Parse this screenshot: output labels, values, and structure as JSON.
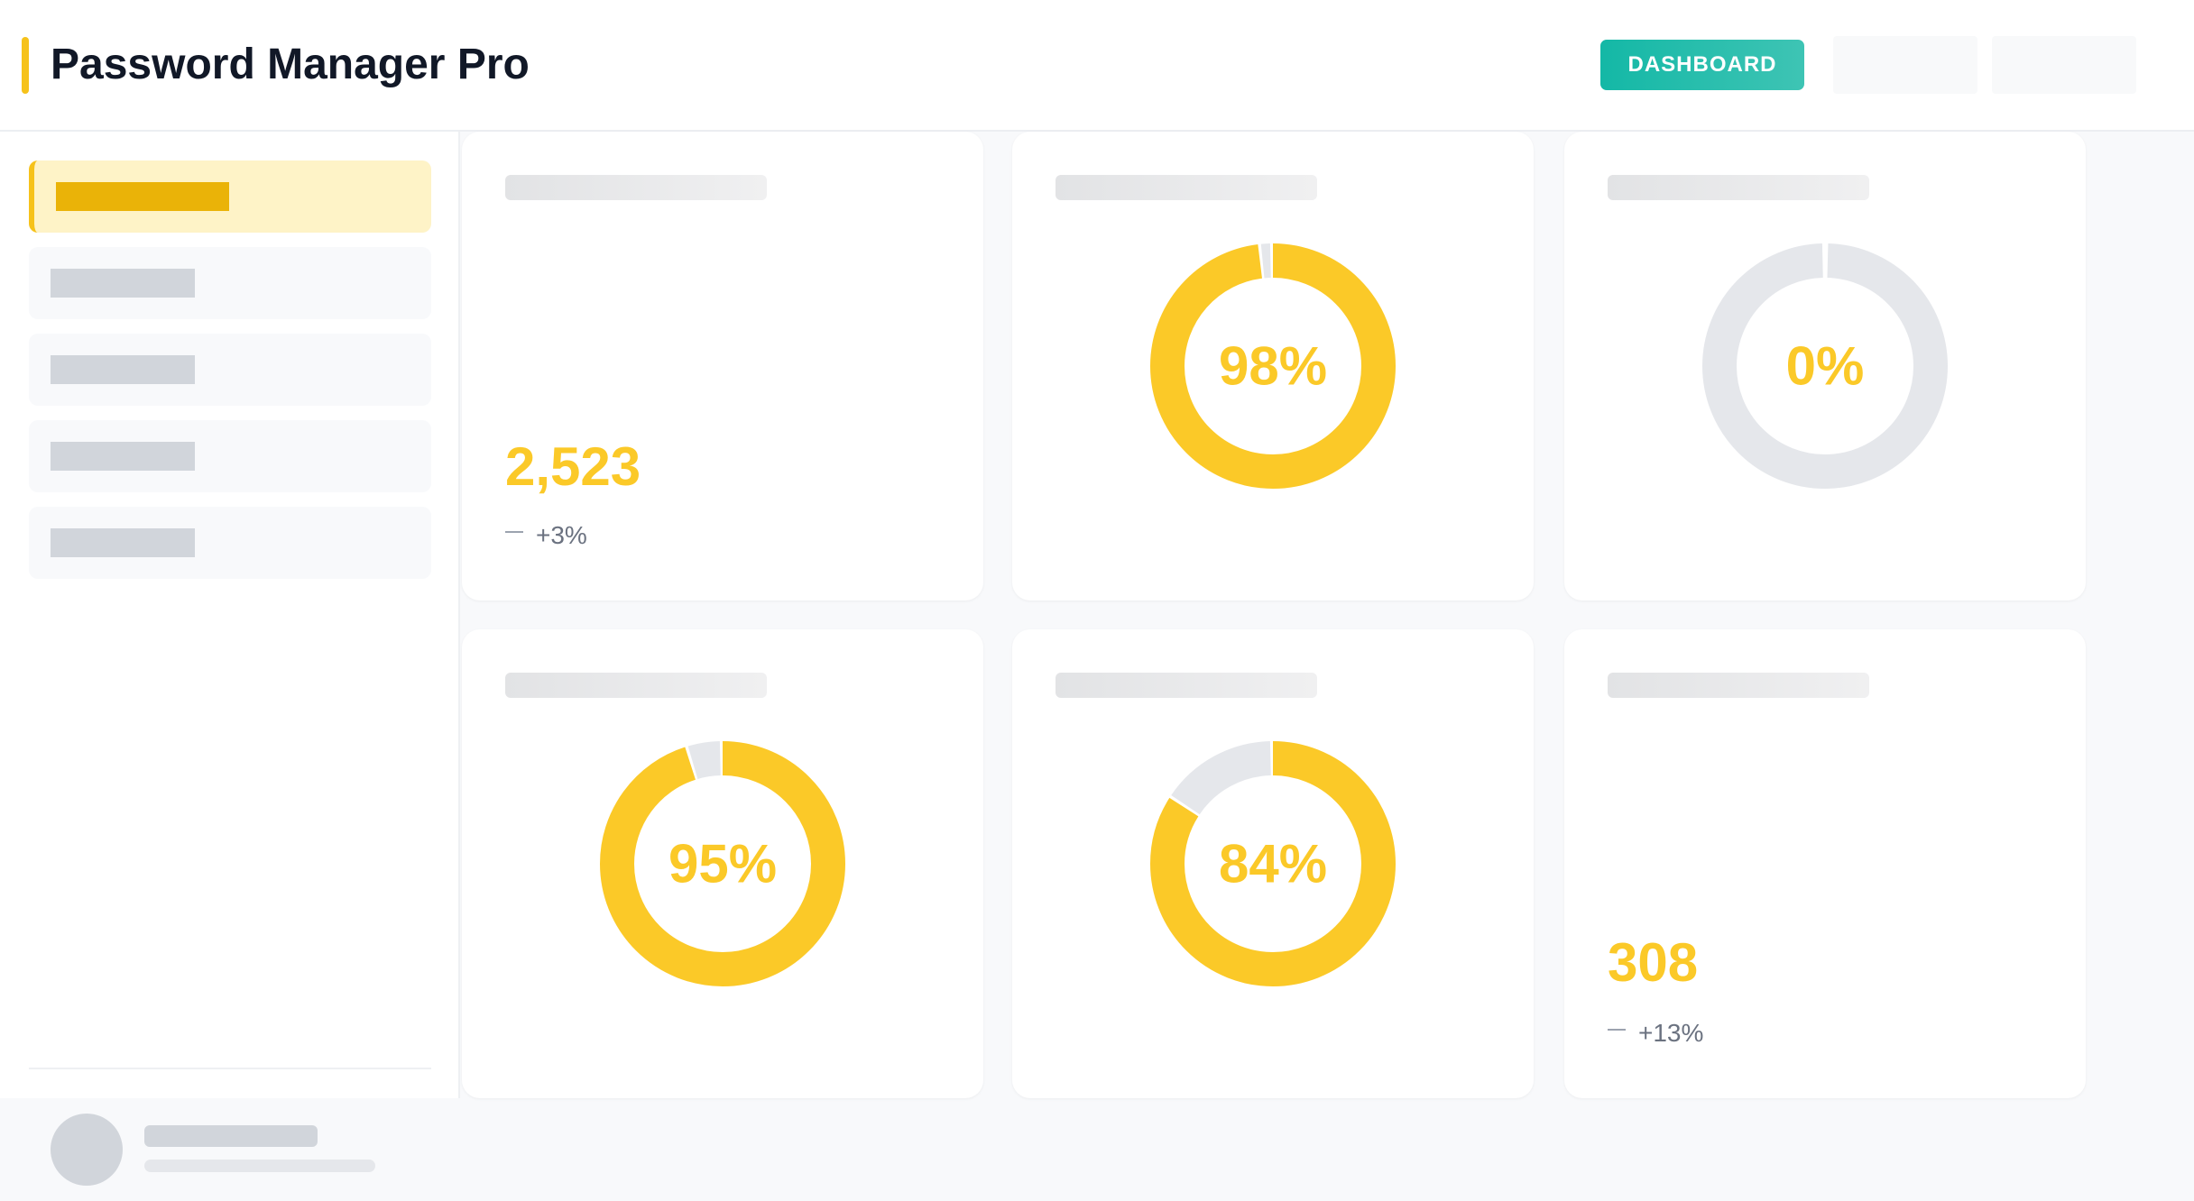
{
  "app": {
    "title": "Password Manager Pro"
  },
  "header": {
    "dashboard_label": "DASHBOARD"
  },
  "colors": {
    "accent": "#f6c21a",
    "value": "#fbc928",
    "track": "#e5e7eb",
    "button": "#14b8a6"
  },
  "cards": [
    {
      "type": "stat",
      "value": "2,523",
      "trend": "+3%"
    },
    {
      "type": "donut",
      "percent": 98,
      "label": "98%"
    },
    {
      "type": "donut",
      "percent": 0,
      "label": "0%"
    },
    {
      "type": "donut",
      "percent": 95,
      "label": "95%"
    },
    {
      "type": "donut",
      "percent": 84,
      "label": "84%"
    },
    {
      "type": "stat",
      "value": "308",
      "trend": "+13%"
    }
  ]
}
